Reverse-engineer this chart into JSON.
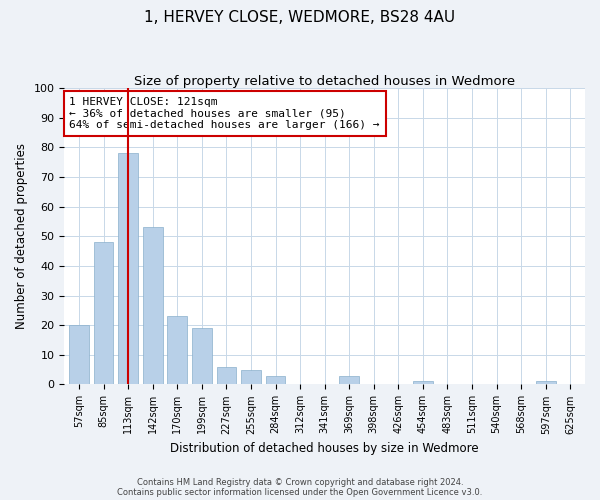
{
  "title": "1, HERVEY CLOSE, WEDMORE, BS28 4AU",
  "subtitle": "Size of property relative to detached houses in Wedmore",
  "xlabel": "Distribution of detached houses by size in Wedmore",
  "ylabel": "Number of detached properties",
  "categories": [
    "57sqm",
    "85sqm",
    "113sqm",
    "142sqm",
    "170sqm",
    "199sqm",
    "227sqm",
    "255sqm",
    "284sqm",
    "312sqm",
    "341sqm",
    "369sqm",
    "398sqm",
    "426sqm",
    "454sqm",
    "483sqm",
    "511sqm",
    "540sqm",
    "568sqm",
    "597sqm",
    "625sqm"
  ],
  "values": [
    20,
    48,
    78,
    53,
    23,
    19,
    6,
    5,
    3,
    0,
    0,
    3,
    0,
    0,
    1,
    0,
    0,
    0,
    0,
    1,
    0
  ],
  "bar_color": "#b8d0e8",
  "bar_edge_color": "#8ab0cc",
  "vline_x_index": 2,
  "vline_color": "#cc0000",
  "annotation_text": "1 HERVEY CLOSE: 121sqm\n← 36% of detached houses are smaller (95)\n64% of semi-detached houses are larger (166) →",
  "annotation_box_color": "#ffffff",
  "annotation_box_edge": "#cc0000",
  "annotation_fontsize": 8.0,
  "ylim": [
    0,
    100
  ],
  "yticks": [
    0,
    10,
    20,
    30,
    40,
    50,
    60,
    70,
    80,
    90,
    100
  ],
  "title_fontsize": 11,
  "subtitle_fontsize": 9.5,
  "xlabel_fontsize": 8.5,
  "ylabel_fontsize": 8.5,
  "footer_line1": "Contains HM Land Registry data © Crown copyright and database right 2024.",
  "footer_line2": "Contains public sector information licensed under the Open Government Licence v3.0.",
  "background_color": "#eef2f7",
  "plot_bg_color": "#ffffff"
}
